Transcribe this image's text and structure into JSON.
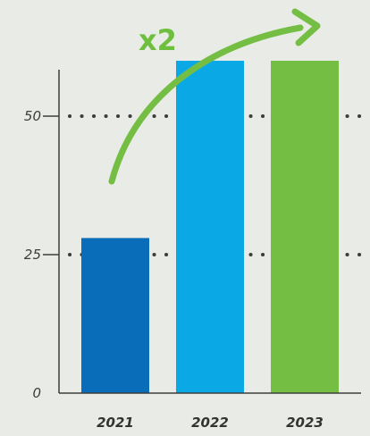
{
  "chart_data": {
    "type": "bar",
    "categories": [
      "2021",
      "2022",
      "2023"
    ],
    "values": [
      28,
      60,
      60
    ],
    "colors": [
      "#0a6db9",
      "#0aa9e6",
      "#73be43"
    ],
    "yticks": [
      0,
      25,
      50
    ],
    "ylim": [
      0,
      60
    ],
    "grid": "dotted horizontal lines at 25 and 50",
    "annotation": "x2",
    "annotation_color": "#6fbf3f",
    "axis_color": "#3d3d3d"
  }
}
